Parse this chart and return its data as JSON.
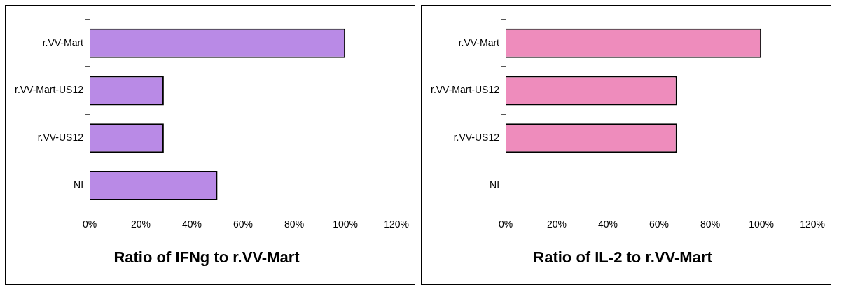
{
  "chart_data": [
    {
      "type": "bar",
      "orientation": "horizontal",
      "title": "Ratio of IFNg to r.VV-Mart",
      "categories": [
        "r.VV-Mart",
        "r.VV-Mart-US12",
        "r.VV-US12",
        "NI"
      ],
      "values": [
        100,
        29,
        29,
        50
      ],
      "color": "#b98ae6",
      "xlim": [
        0,
        120
      ],
      "xticks": [
        {
          "value": 0,
          "label": "0%"
        },
        {
          "value": 20,
          "label": "20%"
        },
        {
          "value": 40,
          "label": "40%"
        },
        {
          "value": 60,
          "label": "60%"
        },
        {
          "value": 80,
          "label": "80%"
        },
        {
          "value": 100,
          "label": "100%"
        },
        {
          "value": 120,
          "label": "120%"
        }
      ],
      "grid": false,
      "legend": false
    },
    {
      "type": "bar",
      "orientation": "horizontal",
      "title": "Ratio of IL-2 to r.VV-Mart",
      "categories": [
        "r.VV-Mart",
        "r.VV-Mart-US12",
        "r.VV-US12",
        "NI"
      ],
      "values": [
        100,
        67,
        67,
        0
      ],
      "color": "#ee8cbc",
      "xlim": [
        0,
        120
      ],
      "xticks": [
        {
          "value": 0,
          "label": "0%"
        },
        {
          "value": 20,
          "label": "20%"
        },
        {
          "value": 40,
          "label": "40%"
        },
        {
          "value": 60,
          "label": "60%"
        },
        {
          "value": 80,
          "label": "80%"
        },
        {
          "value": 100,
          "label": "100%"
        },
        {
          "value": 120,
          "label": "120%"
        }
      ],
      "grid": false,
      "legend": false
    }
  ]
}
